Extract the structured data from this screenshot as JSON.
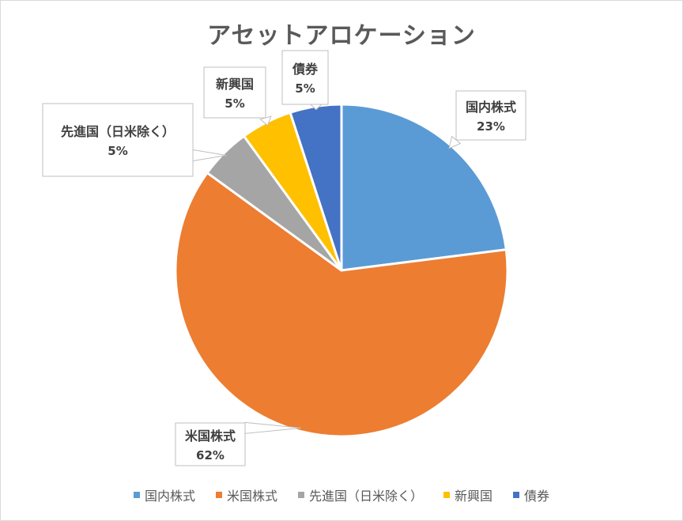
{
  "chart_data": {
    "type": "pie",
    "title": "アセットアロケーション",
    "categories": [
      "国内株式",
      "米国株式",
      "先進国（日米除く）",
      "新興国",
      "債券"
    ],
    "values": [
      23,
      62,
      5,
      5,
      5
    ],
    "labels": [
      "23%",
      "62%",
      "5%",
      "5%",
      "5%"
    ],
    "colors": [
      "#5B9BD5",
      "#ED7D31",
      "#A5A5A5",
      "#FFC000",
      "#4472C4"
    ],
    "legend_position": "bottom",
    "data_labels": "callout"
  }
}
